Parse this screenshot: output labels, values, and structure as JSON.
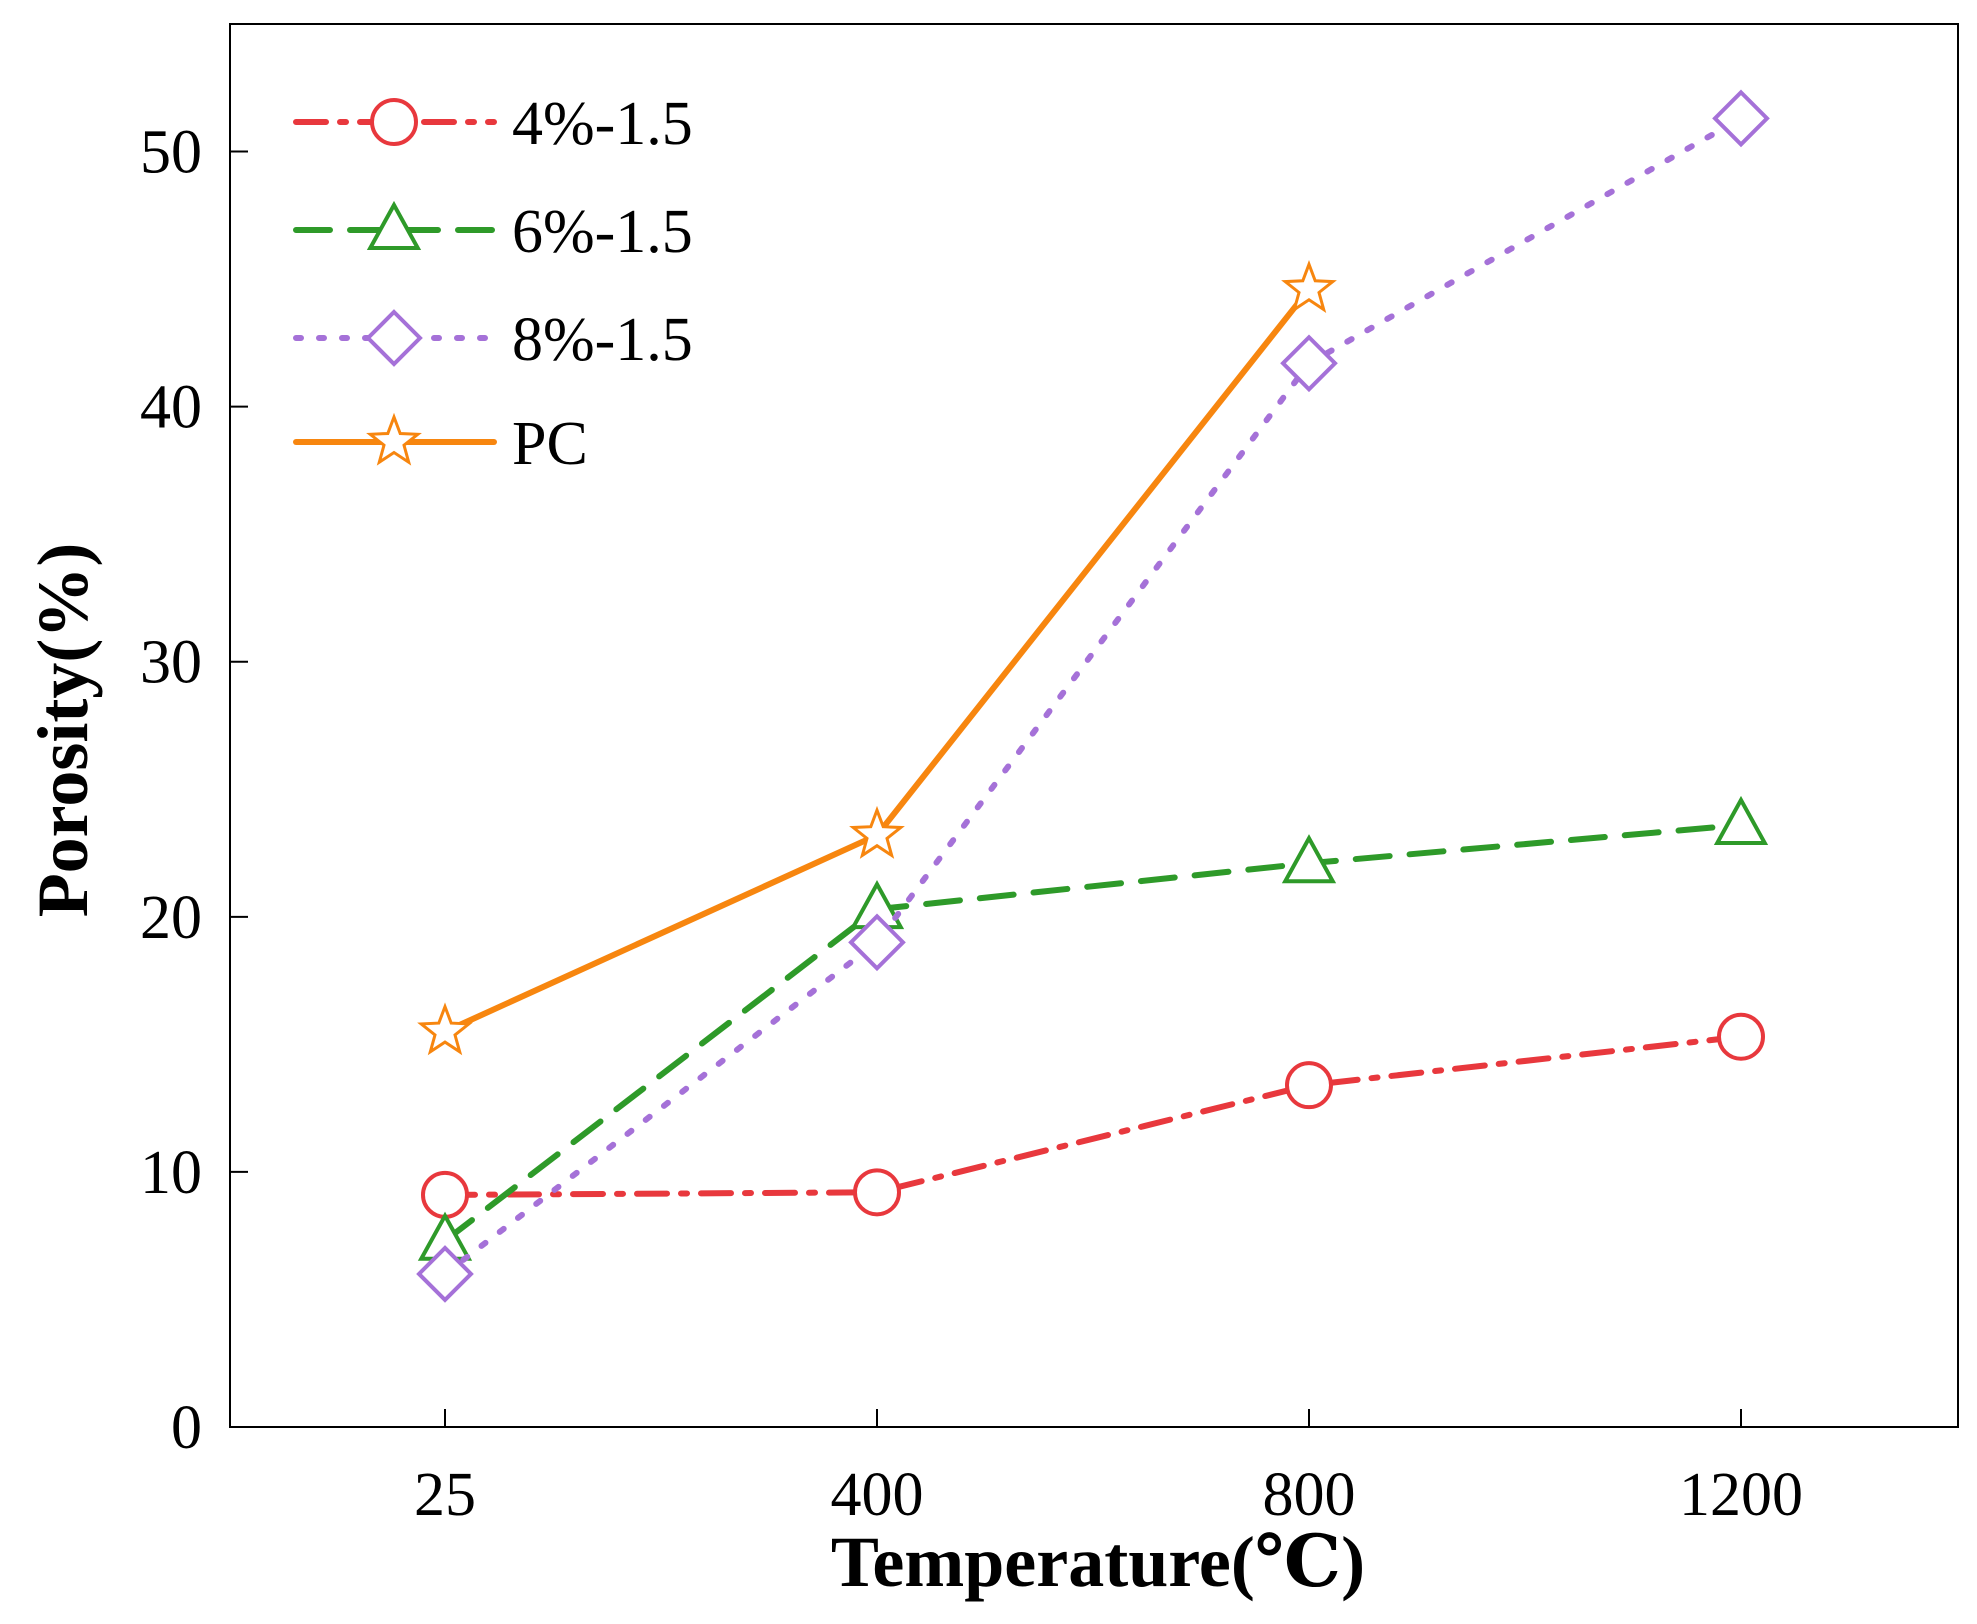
{
  "chart_data": {
    "type": "line",
    "title": "",
    "xlabel": "Temperature(℃)",
    "ylabel": "Porosity(%)",
    "categories": [
      "25",
      "400",
      "800",
      "1200"
    ],
    "ylim": [
      0,
      55
    ],
    "yticks": [
      0,
      10,
      20,
      30,
      40,
      50
    ],
    "ytick_labels": [
      "0",
      "10",
      "20",
      "30",
      "40",
      "50"
    ],
    "grid": false,
    "legend_position": "top-left",
    "series": [
      {
        "name": "4%-1.5",
        "values": [
          9.1,
          9.2,
          13.4,
          15.3
        ],
        "color": "#e8383d",
        "marker": "circle",
        "dash": "dashdot"
      },
      {
        "name": "6%-1.5",
        "values": [
          7.3,
          20.3,
          22.1,
          23.6
        ],
        "color": "#2e9a29",
        "marker": "triangle",
        "dash": "dashed"
      },
      {
        "name": "8%-1.5",
        "values": [
          6.0,
          19.0,
          41.7,
          51.3
        ],
        "color": "#a571d8",
        "marker": "diamond",
        "dash": "dotted"
      },
      {
        "name": "PC",
        "values": [
          15.5,
          23.2,
          44.6,
          null
        ],
        "color": "#f7860f",
        "marker": "star",
        "dash": "solid"
      }
    ]
  }
}
